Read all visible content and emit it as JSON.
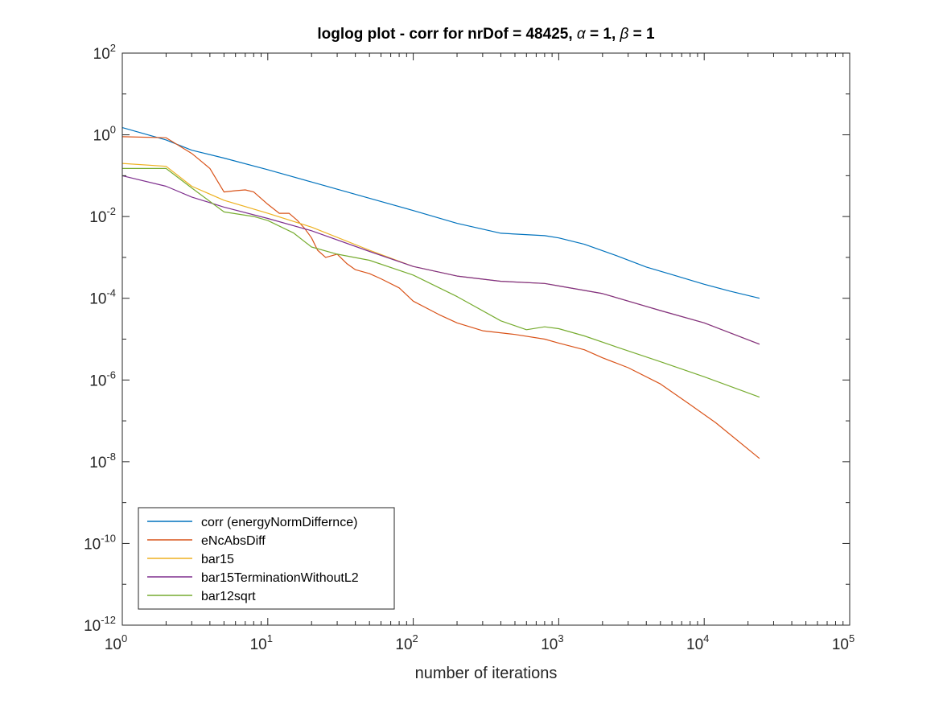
{
  "chart_data": {
    "type": "line",
    "title": "loglog plot - corr for nrDof = 48425, α = 1, β = 1",
    "title_parts": {
      "prefix": "loglog plot - corr for nrDof = 48425, ",
      "alpha_symbol": "α",
      "alpha_value": " = 1, ",
      "beta_symbol": "β",
      "beta_value": " = 1"
    },
    "xlabel": "number of iterations",
    "ylabel": "",
    "xscale": "log",
    "yscale": "log",
    "xlim": [
      1,
      100000
    ],
    "ylim": [
      1e-12,
      100
    ],
    "x_ticks": [
      {
        "base": "10",
        "exp": "0",
        "value": 1
      },
      {
        "base": "10",
        "exp": "1",
        "value": 10
      },
      {
        "base": "10",
        "exp": "2",
        "value": 100
      },
      {
        "base": "10",
        "exp": "3",
        "value": 1000
      },
      {
        "base": "10",
        "exp": "4",
        "value": 10000
      },
      {
        "base": "10",
        "exp": "5",
        "value": 100000
      }
    ],
    "y_ticks": [
      {
        "base": "10",
        "exp": "-12",
        "value": 1e-12
      },
      {
        "base": "10",
        "exp": "-10",
        "value": 1e-10
      },
      {
        "base": "10",
        "exp": "-8",
        "value": 1e-08
      },
      {
        "base": "10",
        "exp": "-6",
        "value": 1e-06
      },
      {
        "base": "10",
        "exp": "-4",
        "value": 0.0001
      },
      {
        "base": "10",
        "exp": "-2",
        "value": 0.01
      },
      {
        "base": "10",
        "exp": "0",
        "value": 1
      },
      {
        "base": "10",
        "exp": "2",
        "value": 100
      }
    ],
    "grid": false,
    "box": true,
    "legend_position": "bottom-left",
    "series": [
      {
        "name": "corr (energyNormDiffernce)",
        "color": "#0072BD",
        "x": [
          1,
          2,
          3,
          5,
          10,
          20,
          50,
          100,
          200,
          400,
          800,
          1000,
          1500,
          2500,
          4000,
          6000,
          10000,
          15000,
          24000
        ],
        "y": [
          1.5,
          0.75,
          0.42,
          0.27,
          0.14,
          0.07,
          0.028,
          0.014,
          0.0068,
          0.0039,
          0.0034,
          0.003,
          0.0021,
          0.0011,
          0.00058,
          0.00038,
          0.00022,
          0.00015,
          0.0001
        ]
      },
      {
        "name": "eNcAbsDiff",
        "color": "#D95319",
        "x": [
          1,
          2,
          3,
          4,
          5,
          6,
          7,
          8,
          10,
          12,
          14,
          16,
          18,
          20,
          22,
          25,
          30,
          35,
          40,
          50,
          60,
          80,
          100,
          150,
          200,
          300,
          500,
          800,
          1000,
          1500,
          2000,
          3000,
          5000,
          8000,
          12000,
          24000
        ],
        "y": [
          0.9,
          0.85,
          0.35,
          0.15,
          0.04,
          0.043,
          0.045,
          0.04,
          0.02,
          0.012,
          0.012,
          0.008,
          0.005,
          0.003,
          0.0015,
          0.001,
          0.0012,
          0.0007,
          0.0005,
          0.0004,
          0.0003,
          0.00018,
          8.5e-05,
          4e-05,
          2.5e-05,
          1.6e-05,
          1.3e-05,
          1e-05,
          8e-06,
          5.5e-06,
          3.5e-06,
          2e-06,
          8e-07,
          2.5e-07,
          9e-08,
          1.2e-08
        ]
      },
      {
        "name": "bar15",
        "color": "#EDB120",
        "x": [
          1,
          2,
          3,
          5,
          10,
          20,
          50,
          100,
          200,
          400,
          800,
          1000,
          2000,
          5000,
          10000,
          24000
        ],
        "y": [
          0.2,
          0.17,
          0.055,
          0.025,
          0.012,
          0.0055,
          0.0015,
          0.0006,
          0.00035,
          0.00026,
          0.00023,
          0.0002,
          0.00013,
          5e-05,
          2.5e-05,
          7.5e-06
        ]
      },
      {
        "name": "bar15TerminationWithoutL2",
        "color": "#7E2F8E",
        "x": [
          1,
          2,
          3,
          5,
          10,
          20,
          50,
          100,
          200,
          400,
          800,
          1000,
          2000,
          5000,
          10000,
          24000
        ],
        "y": [
          0.1,
          0.055,
          0.03,
          0.017,
          0.009,
          0.0045,
          0.0014,
          0.0006,
          0.00035,
          0.00026,
          0.00023,
          0.0002,
          0.00013,
          5e-05,
          2.5e-05,
          7.5e-06
        ]
      },
      {
        "name": "bar12sqrt",
        "color": "#77AC30",
        "x": [
          1,
          2,
          3,
          5,
          8,
          10,
          15,
          20,
          30,
          50,
          100,
          200,
          400,
          600,
          800,
          1000,
          1500,
          2500,
          5000,
          10000,
          24000
        ],
        "y": [
          0.15,
          0.15,
          0.05,
          0.013,
          0.01,
          0.008,
          0.004,
          0.0018,
          0.0012,
          0.00085,
          0.00037,
          0.00011,
          2.8e-05,
          1.7e-05,
          2e-05,
          1.8e-05,
          1.2e-05,
          6.4e-06,
          2.8e-06,
          1.2e-06,
          3.8e-07
        ]
      }
    ]
  }
}
